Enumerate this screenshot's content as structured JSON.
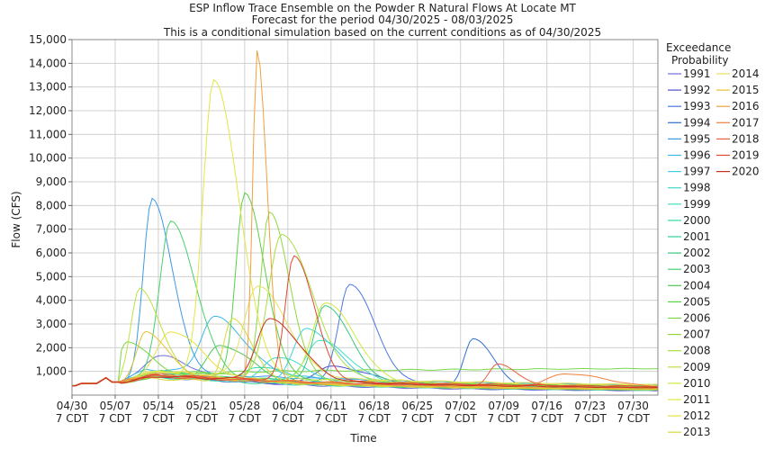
{
  "chart_data": {
    "type": "line",
    "title": "ESP Inflow Trace Ensemble on the Powder R Natural Flows At Locate MT",
    "subtitle": "Forecast for the period 04/30/2025 - 08/03/2025",
    "subtitle2": "This is a conditional simulation based on the current conditions as of 04/30/2025",
    "xlabel": "Time",
    "ylabel": "Flow (CFS)",
    "ylim": [
      0,
      15000
    ],
    "yticks": [
      1000,
      2000,
      3000,
      4000,
      5000,
      6000,
      7000,
      8000,
      9000,
      10000,
      11000,
      12000,
      13000,
      14000,
      15000
    ],
    "ytick_labels": [
      "1,000",
      "2,000",
      "3,000",
      "4,000",
      "5,000",
      "6,000",
      "7,000",
      "8,000",
      "9,000",
      "10,000",
      "11,000",
      "12,000",
      "13,000",
      "14,000",
      "15,000"
    ],
    "xlim_days": [
      0,
      95
    ],
    "xticks": [
      {
        "day": 0,
        "line1": "04/30",
        "line2": "7 CDT"
      },
      {
        "day": 7,
        "line1": "05/07",
        "line2": "7 CDT"
      },
      {
        "day": 14,
        "line1": "05/14",
        "line2": "7 CDT"
      },
      {
        "day": 21,
        "line1": "05/21",
        "line2": "7 CDT"
      },
      {
        "day": 28,
        "line1": "05/28",
        "line2": "7 CDT"
      },
      {
        "day": 35,
        "line1": "06/04",
        "line2": "7 CDT"
      },
      {
        "day": 42,
        "line1": "06/11",
        "line2": "7 CDT"
      },
      {
        "day": 49,
        "line1": "06/18",
        "line2": "7 CDT"
      },
      {
        "day": 56,
        "line1": "06/25",
        "line2": "7 CDT"
      },
      {
        "day": 63,
        "line1": "07/02",
        "line2": "7 CDT"
      },
      {
        "day": 70,
        "line1": "07/09",
        "line2": "7 CDT"
      },
      {
        "day": 77,
        "line1": "07/16",
        "line2": "7 CDT"
      },
      {
        "day": 84,
        "line1": "07/23",
        "line2": "7 CDT"
      },
      {
        "day": 91,
        "line1": "07/30",
        "line2": "7 CDT"
      }
    ],
    "grid": true,
    "legend_title": [
      "Exceedance",
      "Probability"
    ],
    "legend_position": "right",
    "series": [
      {
        "name": "1991",
        "color": "#6f6fe0",
        "base": 850,
        "peak_day": 14,
        "peak": 1650,
        "width": 3,
        "end": 150
      },
      {
        "name": "1992",
        "color": "#5050c8",
        "base": 800,
        "peak_day": 42,
        "peak": 1200,
        "width": 4,
        "end": 160
      },
      {
        "name": "1993",
        "color": "#4a78e0",
        "base": 900,
        "peak_day": 45,
        "peak": 4700,
        "width": 2.5,
        "end": 250
      },
      {
        "name": "1994",
        "color": "#2f6fd0",
        "base": 800,
        "peak_day": 65,
        "peak": 2400,
        "width": 2,
        "end": 200
      },
      {
        "name": "1995",
        "color": "#3c9ae8",
        "base": 1000,
        "peak_day": 13,
        "peak": 8300,
        "width": 2,
        "end": 300
      },
      {
        "name": "1996",
        "color": "#3cb8e8",
        "base": 1100,
        "peak_day": 23,
        "peak": 3300,
        "width": 3,
        "end": 250
      },
      {
        "name": "1997",
        "color": "#40d0e0",
        "base": 950,
        "peak_day": 38,
        "peak": 2800,
        "width": 3,
        "end": 260
      },
      {
        "name": "1998",
        "color": "#40d8c8",
        "base": 800,
        "peak_day": 33,
        "peak": 1600,
        "width": 3,
        "end": 180
      },
      {
        "name": "1999",
        "color": "#40e0c0",
        "base": 900,
        "peak_day": 40,
        "peak": 2300,
        "width": 3,
        "end": 240
      },
      {
        "name": "2000",
        "color": "#30d8a8",
        "base": 750,
        "peak_day": 30,
        "peak": 1200,
        "width": 3,
        "end": 150
      },
      {
        "name": "2001",
        "color": "#30d098",
        "base": 700,
        "peak_day": 16,
        "peak": 900,
        "width": 3,
        "end": 120
      },
      {
        "name": "2002",
        "color": "#38c880",
        "base": 900,
        "peak_day": 41,
        "peak": 3800,
        "width": 2.5,
        "end": 220
      },
      {
        "name": "2003",
        "color": "#48d070",
        "base": 950,
        "peak_day": 16,
        "peak": 7300,
        "width": 2.5,
        "end": 250
      },
      {
        "name": "2004",
        "color": "#50c858",
        "base": 800,
        "peak_day": 24,
        "peak": 2100,
        "width": 3,
        "end": 170
      },
      {
        "name": "2005",
        "color": "#58d048",
        "base": 1000,
        "peak_day": 28,
        "peak": 8500,
        "width": 2,
        "end": 300
      },
      {
        "name": "2006",
        "color": "#78d848",
        "base": 900,
        "peak_day": 9,
        "peak": 2300,
        "width": 2,
        "end": 1150
      },
      {
        "name": "2007",
        "color": "#90d840",
        "base": 850,
        "peak_day": 32,
        "peak": 7700,
        "width": 2,
        "end": 260
      },
      {
        "name": "2008",
        "color": "#a8e040",
        "base": 1000,
        "peak_day": 34,
        "peak": 6800,
        "width": 3,
        "end": 320
      },
      {
        "name": "2009",
        "color": "#c0e040",
        "base": 900,
        "peak_day": 11,
        "peak": 4500,
        "width": 2,
        "end": 220
      },
      {
        "name": "2010",
        "color": "#d0e840",
        "base": 950,
        "peak_day": 41,
        "peak": 3900,
        "width": 3,
        "end": 240
      },
      {
        "name": "2011",
        "color": "#e0e840",
        "base": 1000,
        "peak_day": 23,
        "peak": 13300,
        "width": 2.5,
        "end": 350
      },
      {
        "name": "2012",
        "color": "#e8e040",
        "base": 800,
        "peak_day": 16,
        "peak": 2700,
        "width": 3,
        "end": 160
      },
      {
        "name": "2013",
        "color": "#d8d838",
        "base": 700,
        "peak_day": 26,
        "peak": 3200,
        "width": 2,
        "end": 150
      },
      {
        "name": "2014",
        "color": "#e8e060",
        "base": 1000,
        "peak_day": 30,
        "peak": 4600,
        "width": 3,
        "end": 320
      },
      {
        "name": "2015",
        "color": "#e8c030",
        "base": 900,
        "peak_day": 12,
        "peak": 2700,
        "width": 2,
        "end": 200
      },
      {
        "name": "2016",
        "color": "#f0a040",
        "base": 850,
        "peak_day": 30,
        "peak": 14500,
        "width": 1,
        "end": 250
      },
      {
        "name": "2017",
        "color": "#f08040",
        "base": 900,
        "peak_day": 80,
        "peak": 900,
        "width": 4,
        "end": 260
      },
      {
        "name": "2018",
        "color": "#e86040",
        "base": 800,
        "peak_day": 69,
        "peak": 1300,
        "width": 2,
        "end": 240
      },
      {
        "name": "2019",
        "color": "#e04830",
        "base": 850,
        "peak_day": 36,
        "peak": 5900,
        "width": 2,
        "end": 280
      },
      {
        "name": "2020",
        "color": "#c83020",
        "base": 800,
        "peak_day": 32,
        "peak": 3200,
        "width": 3,
        "end": 200
      }
    ]
  }
}
